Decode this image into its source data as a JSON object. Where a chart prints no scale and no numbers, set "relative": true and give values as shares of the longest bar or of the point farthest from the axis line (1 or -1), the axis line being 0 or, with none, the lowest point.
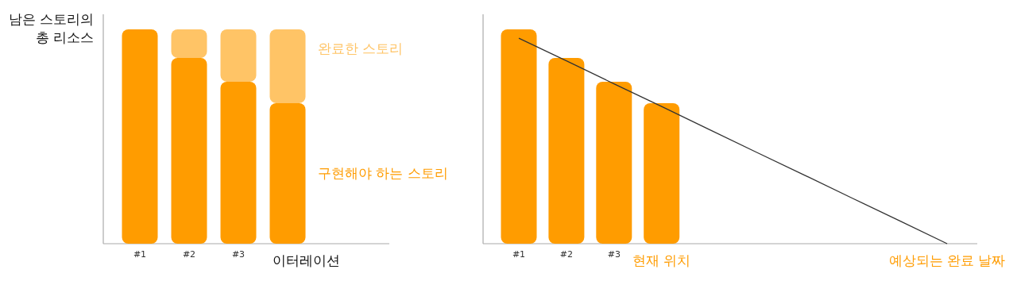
{
  "chart_data": [
    {
      "type": "bar",
      "relative": true,
      "stacked": true,
      "ylabel": "남은 스토리의 총 리소스",
      "xlabel": "이터레이션",
      "categories": [
        "#1",
        "#2",
        "#3",
        null
      ],
      "series": [
        {
          "name": "구현해야 하는 스토리",
          "color": "#ff9c00",
          "values": [
            1,
            0.867,
            0.756,
            0.656
          ]
        },
        {
          "name": "완료한 스토리",
          "color": "#ffc466",
          "values": [
            0,
            0.133,
            0.244,
            0.344
          ]
        }
      ]
    },
    {
      "type": "bar",
      "relative": true,
      "categories": [
        "#1",
        "#2",
        "#3",
        null,
        null,
        null,
        null,
        null,
        null,
        null
      ],
      "series": [
        {
          "color": "#ff9c00",
          "values": [
            1,
            0.867,
            0.756,
            0.656,
            null,
            null,
            null,
            null,
            null,
            null
          ]
        },
        {
          "type": "line",
          "color": "#333333",
          "values": [
            0.959,
            0.853,
            0.746,
            0.64,
            0.533,
            0.426,
            0.32,
            0.213,
            0.107,
            0
          ]
        }
      ],
      "annotations": [
        "현재 위치",
        "예상되는 완료 날짜"
      ]
    }
  ]
}
